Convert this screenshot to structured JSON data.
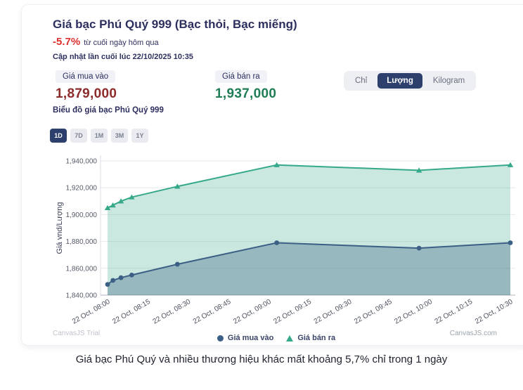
{
  "header": {
    "title": "Giá bạc Phú Quý 999 (Bạc thỏi, Bạc miếng)",
    "change": "-5.7%",
    "change_note": "từ cuối ngày hôm qua",
    "updated": "Cập nhật lần cuối lúc 22/10/2025 10:35"
  },
  "prices": {
    "buy_label": "Giá mua vào",
    "buy_value": "1,879,000",
    "sell_label": "Giá bán ra",
    "sell_value": "1,937,000"
  },
  "units": {
    "options": [
      "Chỉ",
      "Lượng",
      "Kilogram"
    ],
    "selected": "Lượng"
  },
  "chart_heading": "Biểu đồ giá bạc Phú Quý 999",
  "ranges": {
    "options": [
      "1D",
      "7D",
      "1M",
      "3M",
      "1Y"
    ],
    "selected": "1D"
  },
  "chart_data": {
    "type": "area",
    "ylabel": "Giá vnd/Lượng",
    "ylim": [
      1840000,
      1940000
    ],
    "y_ticks": [
      1840000,
      1860000,
      1880000,
      1900000,
      1920000,
      1940000
    ],
    "x_range_minutes": [
      0,
      150
    ],
    "x_tick_labels": [
      "22 Oct, 08:00",
      "22 Oct, 08:15",
      "22 Oct, 08:30",
      "22 Oct, 08:45",
      "22 Oct, 09:00",
      "22 Oct, 09:15",
      "22 Oct, 09:30",
      "22 Oct, 09:45",
      "22 Oct, 10:00",
      "22 Oct, 10:15",
      "22 Oct, 10:30"
    ],
    "x_minutes": [
      0,
      2,
      5,
      9,
      26,
      63,
      116,
      150
    ],
    "x_times": [
      "08:00",
      "08:02",
      "08:05",
      "08:09",
      "08:26",
      "09:03",
      "09:56",
      "10:30"
    ],
    "grid": true,
    "legend_position": "bottom",
    "series": [
      {
        "name": "Giá mua vào",
        "color": "#3b5f85",
        "fill": "rgba(59,95,133,0.35)",
        "marker": "circle",
        "values": [
          1848000,
          1851000,
          1853000,
          1855000,
          1863000,
          1879000,
          1875000,
          1879000
        ]
      },
      {
        "name": "Giá bán ra",
        "color": "#35a98a",
        "fill": "rgba(63,174,140,0.28)",
        "marker": "triangle",
        "values": [
          1905000,
          1907000,
          1910000,
          1913000,
          1921000,
          1937000,
          1933000,
          1937000
        ]
      }
    ]
  },
  "watermarks": {
    "left": "CanvasJS Trial",
    "right": "CanvasJS.com"
  },
  "caption": "Giá bạc Phú Quý và nhiều thương hiệu khác mất khoảng 5,7% chỉ trong 1 ngày",
  "colors": {
    "accent_navy": "#2c3f6d",
    "buy_value": "#8c2b2b",
    "sell_value": "#1f7d55",
    "change_red": "#e03131",
    "buy_line": "#3b5f85",
    "sell_line": "#35a98a"
  }
}
